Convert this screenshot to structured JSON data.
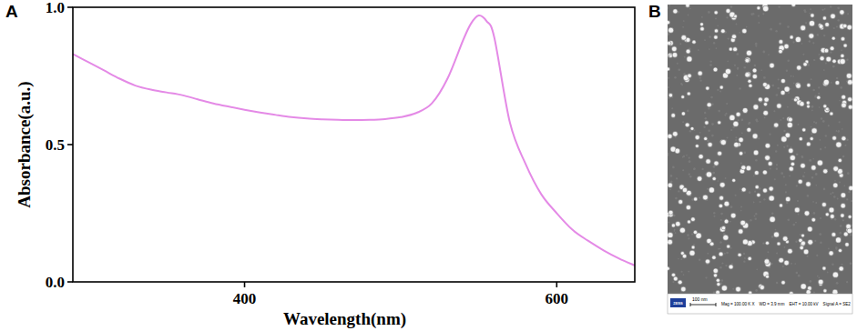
{
  "chart_data": {
    "type": "line",
    "x_label": "Wavelength(nm)",
    "y_label": "Absorbance(a.u.)",
    "x": [
      290,
      300,
      310,
      320,
      330,
      340,
      350,
      360,
      370,
      380,
      390,
      400,
      410,
      420,
      430,
      440,
      450,
      460,
      470,
      480,
      490,
      500,
      510,
      520,
      530,
      540,
      545,
      550,
      555,
      560,
      570,
      580,
      590,
      600,
      610,
      620,
      630,
      640,
      650
    ],
    "values": [
      0.83,
      0.8,
      0.77,
      0.74,
      0.715,
      0.7,
      0.69,
      0.68,
      0.665,
      0.65,
      0.638,
      0.627,
      0.617,
      0.608,
      0.6,
      0.595,
      0.592,
      0.59,
      0.589,
      0.59,
      0.593,
      0.6,
      0.615,
      0.65,
      0.74,
      0.88,
      0.94,
      0.97,
      0.95,
      0.89,
      0.58,
      0.43,
      0.32,
      0.25,
      0.19,
      0.15,
      0.115,
      0.085,
      0.06
    ],
    "color": "#e48ae6",
    "xlim": [
      290,
      650
    ],
    "xticks": [
      400,
      600
    ],
    "ylim": [
      0,
      1.0
    ],
    "yticks": [
      {
        "value": 0,
        "label": "0.0"
      },
      {
        "value": 0.5,
        "label": "0.5"
      },
      {
        "value": 1.0,
        "label": "1.0"
      }
    ],
    "grid": false
  },
  "panel_labels": [
    "A",
    "B"
  ],
  "sem_image": {
    "logo": "ZEISS",
    "scale_bar": "100 nm",
    "info": [
      "Mag = 100.00 K X",
      "WD = 3.9 mm",
      "EHT = 10.00 kV",
      "Signal A = SE2"
    ]
  }
}
